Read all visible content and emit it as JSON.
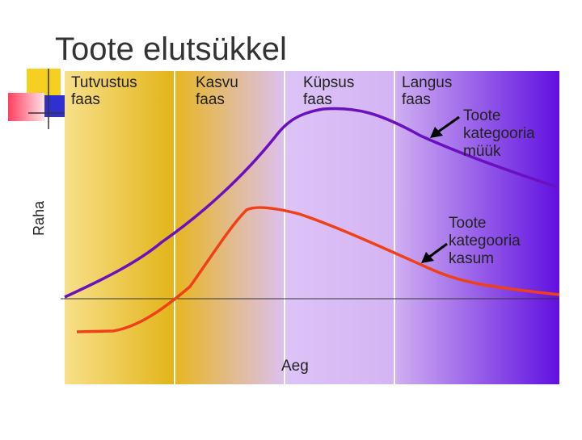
{
  "title": "Toote elutsükkel",
  "phases": [
    [
      "Tutvustus",
      "faas"
    ],
    [
      "Kasvu",
      "faas"
    ],
    [
      "Küpsus",
      "faas"
    ],
    [
      "Langus",
      "faas"
    ]
  ],
  "curve_labels": {
    "sales": [
      "Toote",
      "kategooria",
      "müük"
    ],
    "profit": [
      "Toote",
      "kategooria",
      "kasum"
    ]
  },
  "x_axis_label": "Aeg",
  "y_axis_label": "Raha"
}
